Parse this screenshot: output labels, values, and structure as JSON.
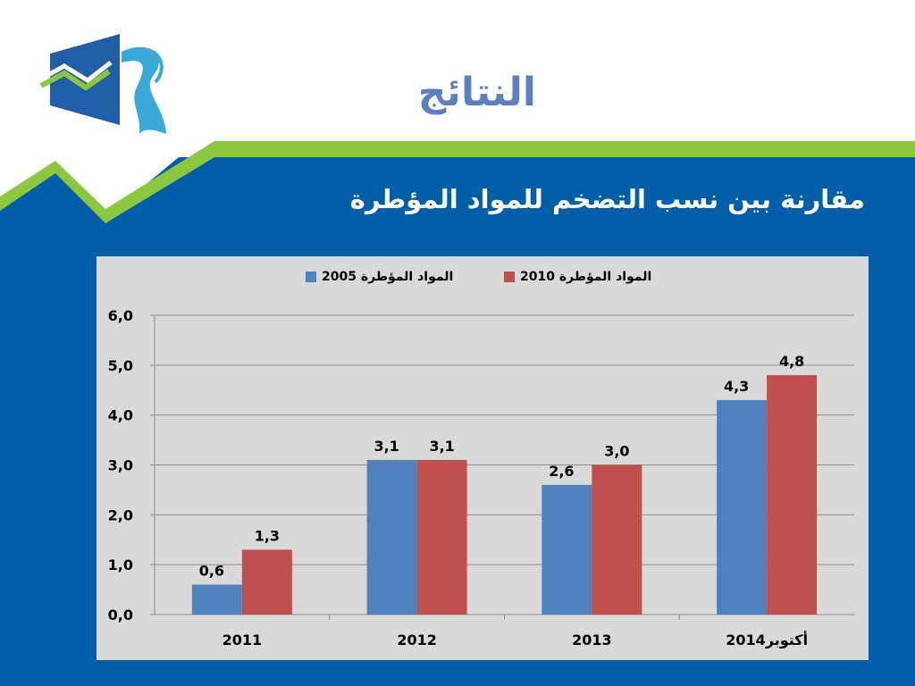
{
  "slide": {
    "title": "النتائج",
    "subtitle": "مقارنة بين نسب التضخم للمواد المؤطرة"
  },
  "colors": {
    "background_blue": "#005fa8",
    "accent_green": "#8dc63f",
    "title_blue": "#5b7fc0",
    "series_2005": "#4f81bd",
    "series_2010": "#c0504d",
    "chart_bg": "#d9d9d9"
  },
  "chart_data": {
    "type": "bar",
    "categories": [
      "2011",
      "2012",
      "2013",
      "أكتوبر2014"
    ],
    "series": [
      {
        "name": "المواد المؤطرة 2005",
        "values": [
          0.6,
          3.1,
          2.6,
          4.3
        ],
        "labels": [
          "0,6",
          "3,1",
          "2,6",
          "4,3"
        ]
      },
      {
        "name": "المواد المؤطرة 2010",
        "values": [
          1.3,
          3.1,
          3.0,
          4.8
        ],
        "labels": [
          "1,3",
          "3,1",
          "3,0",
          "4,8"
        ]
      }
    ],
    "yticks": [
      "0,0",
      "1,0",
      "2,0",
      "3,0",
      "4,0",
      "5,0",
      "6,0"
    ],
    "ylim": [
      0,
      6
    ],
    "grid": true,
    "legend_position": "top"
  }
}
